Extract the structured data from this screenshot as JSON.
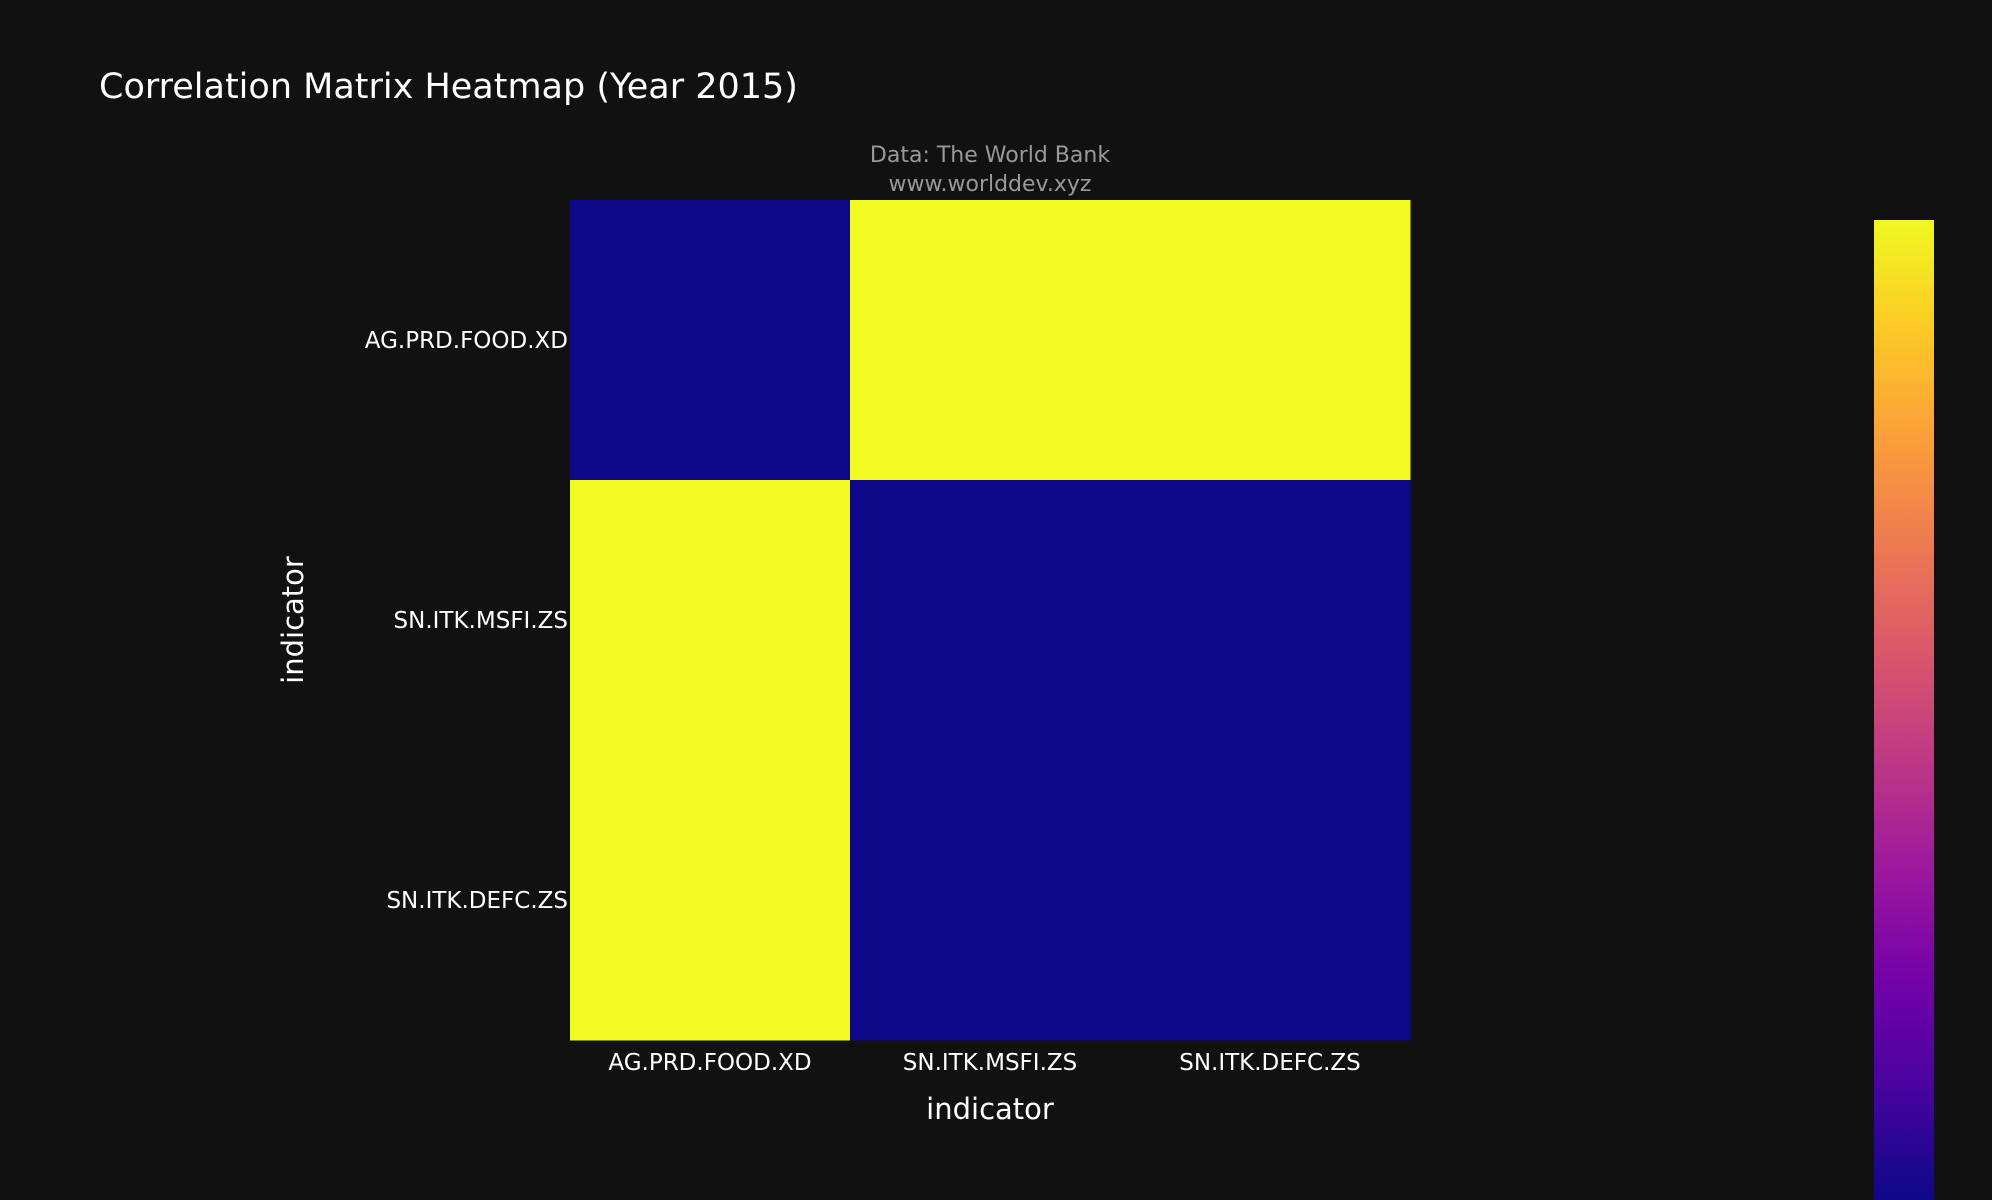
{
  "chart_data": {
    "type": "heatmap",
    "title": "Correlation Matrix Heatmap (Year 2015)",
    "subtitle_lines": [
      "Data: The World Bank",
      "www.worlddev.xyz"
    ],
    "xlabel": "indicator",
    "ylabel": "indicator",
    "x_categories": [
      "AG.PRD.FOOD.XD",
      "SN.ITK.MSFI.ZS",
      "SN.ITK.DEFC.ZS"
    ],
    "y_categories": [
      "AG.PRD.FOOD.XD",
      "SN.ITK.MSFI.ZS",
      "SN.ITK.DEFC.ZS"
    ],
    "z": [
      [
        0.4,
        0.9,
        0.9
      ],
      [
        0.9,
        0.4,
        0.4
      ],
      [
        0.9,
        0.4,
        0.4
      ]
    ],
    "colorscale": {
      "name": "Plasma",
      "stops": [
        "#0d0887",
        "#46039f",
        "#7201a8",
        "#9c179e",
        "#bd3786",
        "#d8576b",
        "#ed7953",
        "#fb9f3a",
        "#fdca26",
        "#f0f921"
      ]
    },
    "zlim": [
      0.4,
      0.9
    ],
    "colors": {
      "background": "#111111",
      "text": "#ffffff",
      "subtitle": "#999999"
    }
  }
}
